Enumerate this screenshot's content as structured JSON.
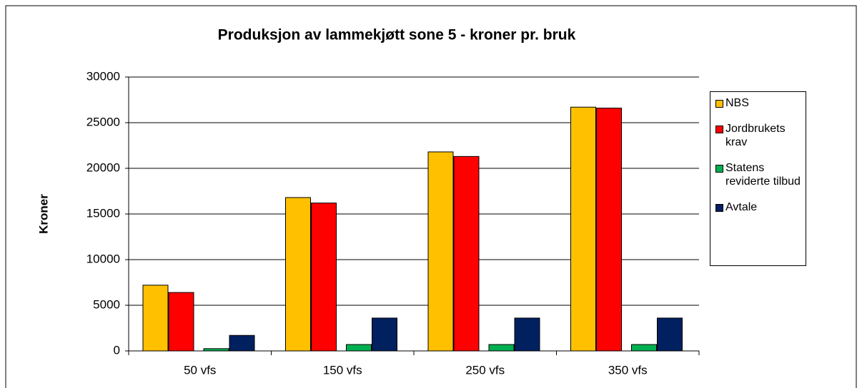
{
  "chart_data": {
    "type": "bar",
    "title": "Produksjon av lammekjøtt sone 5 - kroner pr. bruk",
    "y_label": "Kroner",
    "categories": [
      "50 vfs",
      "150 vfs",
      "250 vfs",
      "350 vfs"
    ],
    "series": [
      {
        "name": "NBS",
        "color": "#ffc000",
        "values": [
          7200,
          16800,
          21800,
          26700
        ]
      },
      {
        "name": "Jordbrukets krav",
        "color": "#ff0000",
        "values": [
          6400,
          16200,
          21300,
          26600
        ]
      },
      {
        "name": "Statens reviderte tilbud",
        "color": "#00b050",
        "values": [
          250,
          700,
          700,
          700
        ]
      },
      {
        "name": "Avtale",
        "color": "#002060",
        "values": [
          1700,
          3600,
          3600,
          3600
        ]
      }
    ],
    "ylim": [
      0,
      30000
    ],
    "yticks": [
      0,
      5000,
      10000,
      15000,
      20000,
      25000,
      30000
    ],
    "grid": true,
    "legend": "right"
  }
}
